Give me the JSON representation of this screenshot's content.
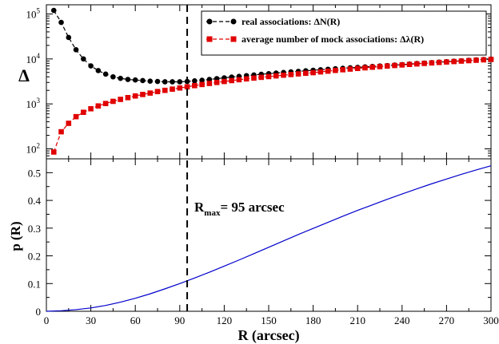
{
  "chart_data": [
    {
      "type": "scatter",
      "panel": "top",
      "yscale": "log",
      "ylabel": "Δ",
      "xlim": [
        0,
        300
      ],
      "ylim": [
        60,
        160000
      ],
      "yticks": [
        {
          "value": 100,
          "base": "10",
          "exp": "2"
        },
        {
          "value": 1000,
          "base": "10",
          "exp": "3"
        },
        {
          "value": 10000,
          "base": "10",
          "exp": "4"
        },
        {
          "value": 100000,
          "base": "10",
          "exp": "5"
        }
      ],
      "series": [
        {
          "name": "real associations: ΔN(R)",
          "color": "#000000",
          "marker": "circle",
          "x": [
            5,
            10,
            15,
            20,
            25,
            30,
            35,
            40,
            45,
            50,
            55,
            60,
            65,
            70,
            75,
            80,
            85,
            90,
            95,
            100,
            105,
            110,
            115,
            120,
            125,
            130,
            135,
            140,
            145,
            150,
            155,
            160,
            165,
            170,
            175,
            180,
            185,
            190,
            195,
            200,
            205,
            210,
            215,
            220,
            225,
            230,
            235,
            240,
            245,
            250,
            255,
            260,
            265,
            270,
            275,
            280,
            285,
            290,
            295,
            300
          ],
          "y": [
            120000,
            65000,
            30000,
            16000,
            10000,
            7000,
            5500,
            4600,
            4000,
            3700,
            3500,
            3400,
            3300,
            3200,
            3150,
            3100,
            3100,
            3100,
            3150,
            3250,
            3350,
            3500,
            3650,
            3800,
            3950,
            4100,
            4250,
            4400,
            4550,
            4700,
            4850,
            5000,
            5150,
            5300,
            5450,
            5600,
            5750,
            5900,
            6050,
            6200,
            6350,
            6500,
            6650,
            6800,
            6950,
            7100,
            7300,
            7500,
            7700,
            7900,
            8100,
            8300,
            8500,
            8700,
            8900,
            9100,
            9300,
            9500,
            9700,
            9900
          ]
        },
        {
          "name": "average  number of mock associations: Δλ(R)",
          "color": "#e00000",
          "marker": "square",
          "x": [
            5,
            10,
            15,
            20,
            25,
            30,
            35,
            40,
            45,
            50,
            55,
            60,
            65,
            70,
            75,
            80,
            85,
            90,
            95,
            100,
            105,
            110,
            115,
            120,
            125,
            130,
            135,
            140,
            145,
            150,
            155,
            160,
            165,
            170,
            175,
            180,
            185,
            190,
            195,
            200,
            205,
            210,
            215,
            220,
            225,
            230,
            235,
            240,
            245,
            250,
            255,
            260,
            265,
            270,
            275,
            280,
            285,
            290,
            295,
            300
          ],
          "y": [
            85,
            240,
            370,
            520,
            650,
            780,
            900,
            1020,
            1140,
            1260,
            1380,
            1500,
            1620,
            1740,
            1880,
            2000,
            2130,
            2260,
            2400,
            2550,
            2700,
            2850,
            3000,
            3150,
            3300,
            3450,
            3600,
            3750,
            3900,
            4050,
            4200,
            4350,
            4500,
            4650,
            4800,
            4950,
            5150,
            5350,
            5550,
            5750,
            5950,
            6150,
            6350,
            6550,
            6750,
            6950,
            7150,
            7350,
            7550,
            7750,
            7950,
            8150,
            8350,
            8550,
            8750,
            8950,
            9150,
            9350,
            9550,
            9750
          ]
        }
      ],
      "legend_position": "top-right"
    },
    {
      "type": "line",
      "panel": "bottom",
      "xlabel": "R (arcsec)",
      "ylabel": "p (R)",
      "xlim": [
        0,
        300
      ],
      "ylim": [
        0,
        0.55
      ],
      "xticks": [
        0,
        30,
        60,
        90,
        120,
        150,
        180,
        210,
        240,
        270,
        300
      ],
      "yticks": [
        "0",
        "0.1",
        "0.2",
        "0.3",
        "0.4",
        "0.5"
      ],
      "series": [
        {
          "color": "#0000cc",
          "x": [
            0,
            10,
            20,
            30,
            40,
            50,
            60,
            70,
            80,
            90,
            100,
            110,
            120,
            130,
            140,
            150,
            160,
            170,
            180,
            190,
            200,
            210,
            220,
            230,
            240,
            250,
            260,
            270,
            280,
            290,
            300
          ],
          "y": [
            0.0,
            0.002,
            0.006,
            0.012,
            0.021,
            0.033,
            0.047,
            0.063,
            0.081,
            0.1,
            0.12,
            0.141,
            0.163,
            0.185,
            0.208,
            0.231,
            0.254,
            0.277,
            0.299,
            0.321,
            0.343,
            0.364,
            0.384,
            0.404,
            0.423,
            0.442,
            0.46,
            0.477,
            0.494,
            0.51,
            0.525
          ]
        }
      ]
    }
  ],
  "annotations": {
    "r_max_x": 95,
    "r_max_symbol": "R",
    "r_max_sub": "max",
    "r_max_text": "= 95 arcsec"
  }
}
